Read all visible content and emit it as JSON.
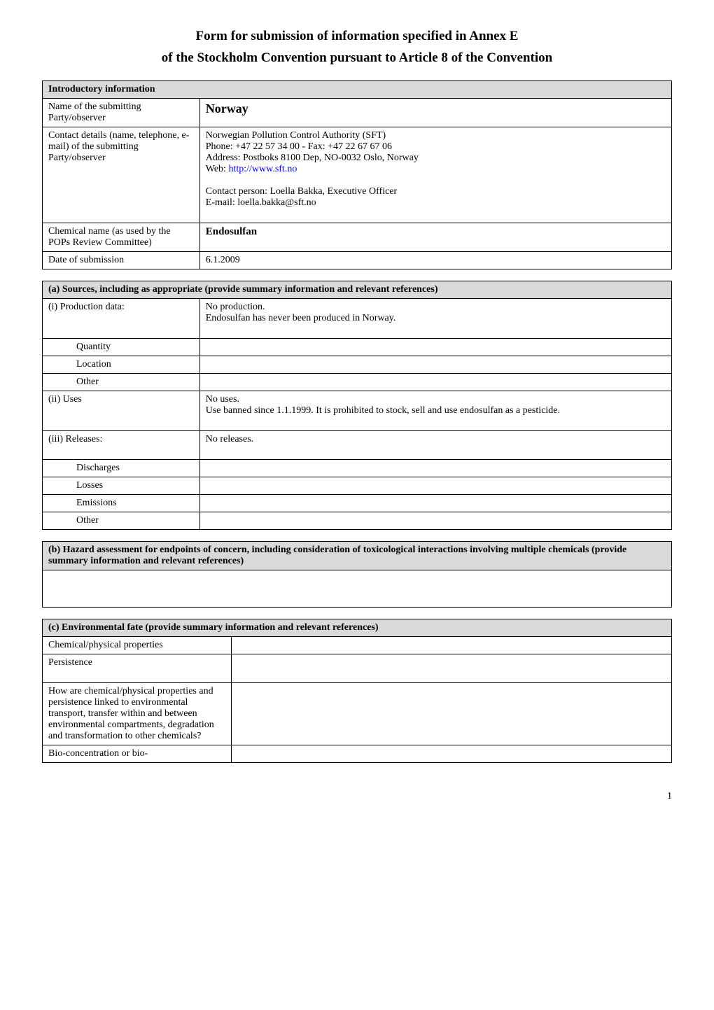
{
  "title": {
    "line1": "Form for submission of information specified in Annex E",
    "line2": "of the Stockholm Convention pursuant to Article 8 of the Convention"
  },
  "colors": {
    "background": "#ffffff",
    "header_bg": "#d9d9d9",
    "border": "#000000",
    "text": "#000000",
    "link": "#0000ff"
  },
  "intro": {
    "header": "Introductory information",
    "row1": {
      "label": "Name of the submitting Party/observer",
      "value": "Norway"
    },
    "row2": {
      "label": "Contact details (name, telephone, e-mail) of the submitting Party/observer",
      "line1": "Norwegian Pollution Control Authority (SFT)",
      "line2": "Phone: +47 22 57 34 00 - Fax: +47 22 67 67 06",
      "line3": "Address: Postboks 8100 Dep, NO-0032 Oslo, Norway",
      "line4_prefix": "Web: ",
      "line4_link": "http://www.sft.no",
      "line6": "Contact person: Loella Bakka, Executive Officer",
      "line7": "E-mail: loella.bakka@sft.no"
    },
    "row3": {
      "label": "Chemical name (as used by the POPs Review Committee)",
      "value": "Endosulfan"
    },
    "row4": {
      "label": "Date of submission",
      "value": "6.1.2009"
    }
  },
  "section_a": {
    "header": "(a) Sources, including as appropriate (provide summary information and relevant references)",
    "rows": {
      "production": {
        "label": "(i) Production data:",
        "line1": "No production.",
        "line2": "Endosulfan has never been produced in Norway."
      },
      "quantity": {
        "label": "Quantity"
      },
      "location": {
        "label": "Location"
      },
      "other1": {
        "label": "Other"
      },
      "uses": {
        "label": "(ii) Uses",
        "line1": "No uses.",
        "line2": "Use banned since 1.1.1999. It is prohibited to stock, sell and use endosulfan as a pesticide."
      },
      "releases": {
        "label": "(iii) Releases:",
        "value": "No releases."
      },
      "discharges": {
        "label": "Discharges"
      },
      "losses": {
        "label": "Losses"
      },
      "emissions": {
        "label": "Emissions"
      },
      "other2": {
        "label": "Other"
      }
    }
  },
  "section_b": {
    "header": "(b) Hazard assessment for endpoints of concern, including consideration of toxicological interactions involving multiple chemicals (provide summary information and relevant references)"
  },
  "section_c": {
    "header": "(c) Environmental fate (provide summary information and relevant references)",
    "rows": {
      "chemphys": {
        "label": "Chemical/physical properties"
      },
      "persistence": {
        "label": "Persistence"
      },
      "linked": {
        "label": "How are chemical/physical properties and persistence linked to environmental transport, transfer within and between environmental compartments, degradation and transformation to other chemicals?"
      },
      "bio": {
        "label": "Bio-concentration or bio-"
      }
    }
  },
  "footer": {
    "page": "1"
  }
}
